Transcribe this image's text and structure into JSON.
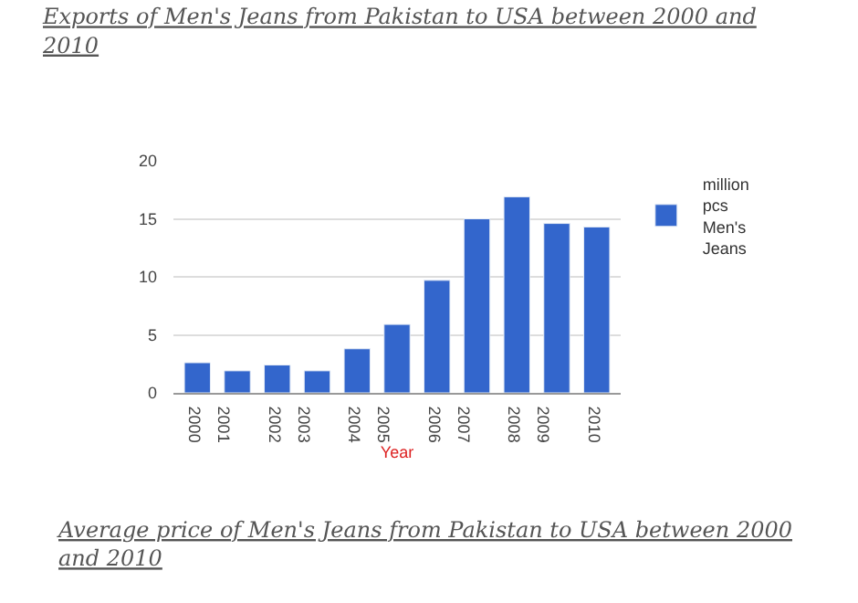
{
  "chart_data": {
    "type": "bar",
    "title": "Exports of Men's Jeans from Pakistan to USA between 2000 and 2010",
    "xlabel": "Year",
    "categories": [
      "2000",
      "2001",
      "2002",
      "2003",
      "2004",
      "2005",
      "2006",
      "2007",
      "2008",
      "2009",
      "2010"
    ],
    "series": [
      {
        "name": "million pcs Men's Jeans",
        "color": "#3366cc",
        "values": [
          2.6,
          1.9,
          2.4,
          1.9,
          3.8,
          5.9,
          9.7,
          15.0,
          16.9,
          14.6,
          14.3
        ]
      }
    ],
    "ylim": [
      0,
      20
    ],
    "yticks": [
      0,
      5,
      10,
      15,
      20
    ],
    "grid": "y",
    "legend": "top right",
    "annotations": [
      "Average price of Men's Jeans from Pakistan to USA between 2000 and 2010"
    ]
  }
}
